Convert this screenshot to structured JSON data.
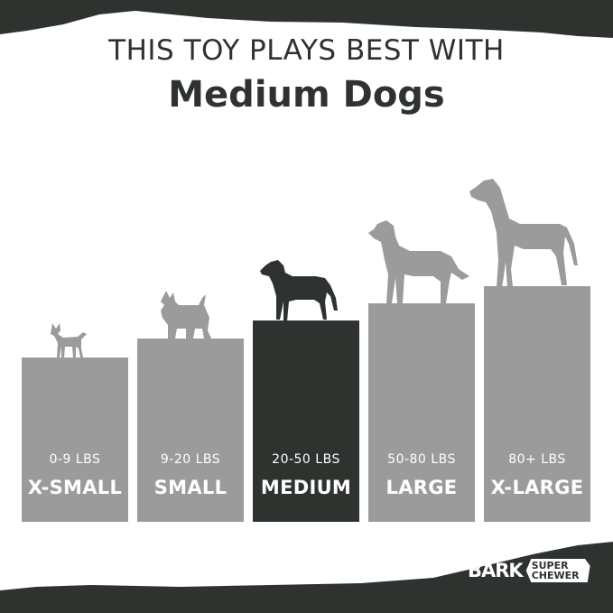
{
  "header": {
    "line1": "THIS TOY PLAYS BEST WITH",
    "line2": "Medium Dogs"
  },
  "sizes": [
    {
      "range": "0-9 LBS",
      "label": "X-SMALL",
      "active": false
    },
    {
      "range": "9-20 LBS",
      "label": "SMALL",
      "active": false
    },
    {
      "range": "20-50 LBS",
      "label": "MEDIUM",
      "active": true
    },
    {
      "range": "50-80 LBS",
      "label": "LARGE",
      "active": false
    },
    {
      "range": "80+ LBS",
      "label": "X-LARGE",
      "active": false
    }
  ],
  "brand": {
    "logo": "BARK",
    "badge_line1": "SUPER",
    "badge_line2": "CHEWER"
  },
  "colors": {
    "dark": "#2f3330",
    "bar": "#9b9b9b",
    "background": "#ffffff"
  }
}
